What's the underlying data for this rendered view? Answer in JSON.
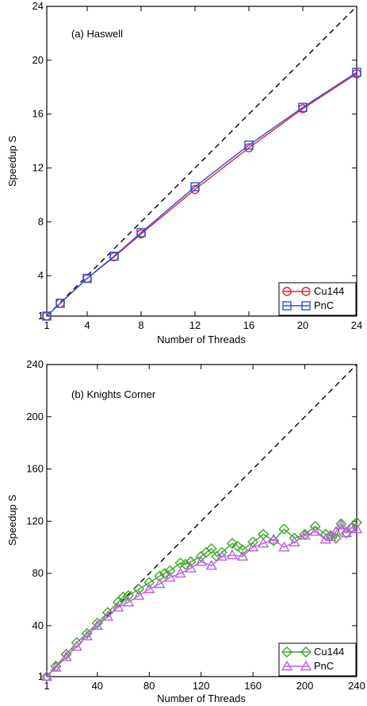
{
  "chart_data": [
    {
      "type": "line",
      "title": "(a) Haswell",
      "xlabel": "Number of Threads",
      "ylabel": "Speedup S",
      "xlim": [
        1,
        24
      ],
      "ylim": [
        1,
        24
      ],
      "xticks": [
        1,
        4,
        8,
        12,
        16,
        20,
        24
      ],
      "yticks": [
        1,
        4,
        8,
        12,
        16,
        20,
        24
      ],
      "grid": false,
      "legend_position": "bottom-right",
      "reference_line": "ideal",
      "series": [
        {
          "name": "Cu144",
          "color": "#e8202a",
          "marker": "circle",
          "x": [
            1,
            2,
            4,
            6,
            8,
            12,
            16,
            20,
            24
          ],
          "y": [
            1.0,
            1.95,
            3.8,
            5.4,
            7.1,
            10.4,
            13.5,
            16.4,
            19.0
          ]
        },
        {
          "name": "PnC",
          "color": "#2b4fd8",
          "marker": "square",
          "x": [
            1,
            2,
            4,
            6,
            8,
            12,
            16,
            20,
            24
          ],
          "y": [
            1.0,
            1.95,
            3.8,
            5.45,
            7.2,
            10.6,
            13.7,
            16.5,
            19.1
          ]
        }
      ]
    },
    {
      "type": "line",
      "title": "(b) Knights Corner",
      "xlabel": "Number of Threads",
      "ylabel": "Speedup S",
      "xlim": [
        1,
        240
      ],
      "ylim": [
        1,
        240
      ],
      "xticks": [
        1,
        40,
        80,
        120,
        160,
        200,
        240
      ],
      "yticks": [
        1,
        40,
        80,
        120,
        160,
        200,
        240
      ],
      "grid": false,
      "legend_position": "bottom-right",
      "reference_line": "ideal",
      "series": [
        {
          "name": "Cu144",
          "color": "#3aa81f",
          "marker": "diamond",
          "x": [
            1,
            8,
            16,
            24,
            32,
            40,
            48,
            56,
            60,
            64,
            72,
            80,
            88,
            92,
            96,
            104,
            108,
            112,
            120,
            124,
            128,
            132,
            136,
            144,
            148,
            152,
            160,
            168,
            176,
            184,
            192,
            200,
            208,
            216,
            220,
            224,
            228,
            232,
            236,
            240
          ],
          "y": [
            1,
            9,
            18,
            27,
            34,
            42,
            50,
            58,
            62,
            63,
            68,
            73,
            78,
            80,
            82,
            88,
            87,
            89,
            93,
            96,
            99,
            93,
            96,
            103,
            101,
            98,
            104,
            110,
            105,
            114,
            107,
            110,
            116,
            110,
            109,
            107,
            118,
            111,
            115,
            119
          ]
        },
        {
          "name": "PnC",
          "color": "#c05ce8",
          "marker": "triangle",
          "x": [
            1,
            8,
            16,
            24,
            32,
            40,
            48,
            56,
            64,
            72,
            80,
            88,
            96,
            104,
            112,
            120,
            128,
            136,
            144,
            152,
            160,
            168,
            176,
            184,
            192,
            200,
            208,
            216,
            220,
            224,
            228,
            232,
            236,
            240
          ],
          "y": [
            1,
            8,
            16,
            24,
            32,
            40,
            47,
            54,
            58,
            63,
            68,
            72,
            77,
            80,
            84,
            89,
            86,
            93,
            94,
            93,
            100,
            103,
            106,
            100,
            104,
            109,
            112,
            106,
            108,
            112,
            117,
            111,
            115,
            114
          ]
        }
      ]
    }
  ]
}
